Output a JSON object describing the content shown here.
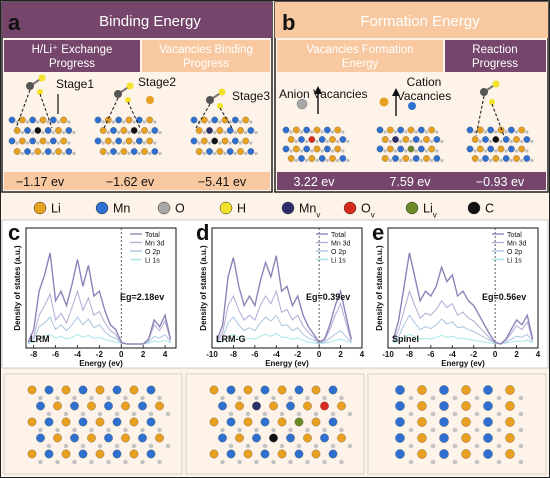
{
  "panels": {
    "a": {
      "letter": "a",
      "title": "Binding Energy",
      "sub_left": [
        "H/Li⁺ Exchange",
        "Progress"
      ],
      "sub_right": [
        "Vacancies Binding",
        "Progress"
      ],
      "stages": [
        "Stage1",
        "Stage2",
        "Stage3"
      ],
      "energies": [
        "−1.17 ev",
        "−1.62 ev",
        "−5.41 ev"
      ]
    },
    "b": {
      "letter": "b",
      "title": "Formation Energy",
      "sub_left": [
        "Vacancies Formation",
        "Energy"
      ],
      "sub_right": [
        "Reaction",
        "Progress"
      ],
      "anion_label": "Anion Vacancies",
      "cation_label": [
        "Cation",
        "Vacancies"
      ],
      "energies": [
        "3.22 ev",
        "7.59 ev",
        "−0.93 ev"
      ]
    },
    "c": {
      "letter": "c"
    },
    "d": {
      "letter": "d"
    },
    "e": {
      "letter": "e"
    }
  },
  "legend": [
    {
      "label": "Li",
      "sub": "",
      "color": "#e8a020"
    },
    {
      "label": "Mn",
      "sub": "",
      "color": "#2f6fd0"
    },
    {
      "label": "O",
      "sub": "",
      "color": "#a8a8a8"
    },
    {
      "label": "H",
      "sub": "",
      "color": "#f2e22a"
    },
    {
      "label": "Mn",
      "sub": "v",
      "color": "#2b2f6a"
    },
    {
      "label": "O",
      "sub": "v",
      "color": "#d62a1e"
    },
    {
      "label": "Li",
      "sub": "v",
      "color": "#6a8a2a"
    },
    {
      "label": "C",
      "sub": "",
      "color": "#111111"
    }
  ],
  "colors": {
    "purple": "#75456b",
    "peach": "#f8c9a0",
    "peach_light": "#fdebd8",
    "panel_bg": "#fdf3e8",
    "dos_total": "#8f82b8",
    "dos_mn": "#b8b0d6",
    "dos_o": "#a9c4e0",
    "dos_li": "#a8e6e6"
  },
  "chart_data": [
    {
      "type": "line",
      "panel": "c",
      "xlabel": "Energy (ev)",
      "ylabel": "Density of states (a.u.)",
      "xlim": [
        -8.7,
        5
      ],
      "xticks": [
        -8,
        -6,
        -4,
        -2,
        0,
        2,
        4
      ],
      "material": "LRM",
      "annotation": "Eg=2.18ev",
      "series": [
        {
          "name": "Total",
          "x": [
            -8.5,
            -8,
            -7.5,
            -7,
            -6.5,
            -6,
            -5.5,
            -5,
            -4.5,
            -4,
            -3.5,
            -3,
            -2.5,
            -2,
            -1.5,
            -1,
            -0.5,
            0,
            0.5,
            1,
            1.5,
            2,
            2.5,
            3,
            3.5,
            4,
            4.5
          ],
          "values": [
            0.02,
            0.15,
            0.55,
            0.72,
            0.95,
            0.45,
            0.55,
            0.4,
            0.62,
            0.88,
            0.6,
            0.82,
            0.5,
            0.55,
            0.35,
            0.2,
            0.15,
            0.02,
            0,
            0,
            0,
            0,
            0.05,
            0.25,
            0.18,
            0.3,
            0.05
          ]
        },
        {
          "name": "Mn 3d",
          "x": [
            -8.5,
            -8,
            -7.5,
            -7,
            -6.5,
            -6,
            -5.5,
            -5,
            -4.5,
            -4,
            -3.5,
            -3,
            -2.5,
            -2,
            -1.5,
            -1,
            -0.5,
            0,
            0.5,
            1,
            1.5,
            2,
            2.5,
            3,
            3.5,
            4,
            4.5
          ],
          "values": [
            0.01,
            0.08,
            0.3,
            0.4,
            0.52,
            0.25,
            0.32,
            0.22,
            0.38,
            0.55,
            0.35,
            0.48,
            0.3,
            0.34,
            0.22,
            0.14,
            0.1,
            0.01,
            0,
            0,
            0,
            0,
            0.04,
            0.2,
            0.14,
            0.24,
            0.04
          ]
        },
        {
          "name": "O 2p",
          "x": [
            -8.5,
            -8,
            -7.5,
            -7,
            -6.5,
            -6,
            -5.5,
            -5,
            -4.5,
            -4,
            -3.5,
            -3,
            -2.5,
            -2,
            -1.5,
            -1,
            -0.5,
            0,
            0.5,
            1,
            1.5,
            2,
            2.5,
            3,
            3.5,
            4,
            4.5
          ],
          "values": [
            0.01,
            0.05,
            0.18,
            0.22,
            0.28,
            0.15,
            0.2,
            0.14,
            0.2,
            0.28,
            0.2,
            0.26,
            0.17,
            0.2,
            0.13,
            0.08,
            0.06,
            0.01,
            0,
            0,
            0,
            0,
            0.02,
            0.08,
            0.06,
            0.1,
            0.02
          ]
        },
        {
          "name": "Li 1s",
          "x": [
            -8.5,
            -8,
            -7.5,
            -7,
            -6.5,
            -6,
            -5.5,
            -5,
            -4.5,
            -4,
            -3.5,
            -3,
            -2.5,
            -2,
            -1.5,
            -1,
            -0.5,
            0,
            0.5,
            1,
            1.5,
            2,
            2.5,
            3,
            3.5,
            4,
            4.5
          ],
          "values": [
            0.005,
            0.02,
            0.06,
            0.08,
            0.1,
            0.06,
            0.08,
            0.05,
            0.07,
            0.1,
            0.07,
            0.09,
            0.06,
            0.07,
            0.05,
            0.03,
            0.02,
            0.005,
            0,
            0,
            0,
            0,
            0.01,
            0.03,
            0.02,
            0.04,
            0.01
          ]
        }
      ]
    },
    {
      "type": "line",
      "panel": "d",
      "xlabel": "Energy (ev)",
      "ylabel": "Density of states (a.u.)",
      "xlim": [
        -10,
        4
      ],
      "xticks": [
        -10,
        -8,
        -6,
        -4,
        -2,
        0,
        2,
        4
      ],
      "material": "LRM-G",
      "annotation": "Eg=0.39ev",
      "series": [
        {
          "name": "Total",
          "x": [
            -9.5,
            -9,
            -8.5,
            -8,
            -7.5,
            -7,
            -6.5,
            -6,
            -5.5,
            -5,
            -4.5,
            -4,
            -3.5,
            -3,
            -2.5,
            -2,
            -1.5,
            -1,
            -0.5,
            0,
            0.5,
            1,
            1.5,
            2,
            2.5,
            3
          ],
          "values": [
            0.05,
            0.2,
            0.7,
            0.9,
            0.6,
            0.4,
            0.5,
            0.4,
            0.65,
            0.85,
            0.7,
            0.92,
            0.55,
            0.6,
            0.4,
            0.5,
            0.3,
            0.18,
            0.1,
            0.02,
            0.05,
            0.2,
            0.4,
            0.55,
            0.3,
            0.05
          ]
        },
        {
          "name": "Mn 3d",
          "x": [
            -9.5,
            -9,
            -8.5,
            -8,
            -7.5,
            -7,
            -6.5,
            -6,
            -5.5,
            -5,
            -4.5,
            -4,
            -3.5,
            -3,
            -2.5,
            -2,
            -1.5,
            -1,
            -0.5,
            0,
            0.5,
            1,
            1.5,
            2,
            2.5,
            3
          ],
          "values": [
            0.03,
            0.12,
            0.4,
            0.5,
            0.35,
            0.25,
            0.3,
            0.25,
            0.4,
            0.5,
            0.42,
            0.55,
            0.33,
            0.36,
            0.25,
            0.3,
            0.19,
            0.12,
            0.07,
            0.01,
            0.04,
            0.15,
            0.3,
            0.42,
            0.22,
            0.03
          ]
        },
        {
          "name": "O 2p",
          "x": [
            -9.5,
            -9,
            -8.5,
            -8,
            -7.5,
            -7,
            -6.5,
            -6,
            -5.5,
            -5,
            -4.5,
            -4,
            -3.5,
            -3,
            -2.5,
            -2,
            -1.5,
            -1,
            -0.5,
            0,
            0.5,
            1,
            1.5,
            2,
            2.5,
            3
          ],
          "values": [
            0.02,
            0.07,
            0.22,
            0.28,
            0.2,
            0.14,
            0.17,
            0.14,
            0.22,
            0.28,
            0.24,
            0.3,
            0.19,
            0.2,
            0.14,
            0.17,
            0.1,
            0.06,
            0.04,
            0.01,
            0.02,
            0.06,
            0.1,
            0.14,
            0.08,
            0.02
          ]
        },
        {
          "name": "Li 1s",
          "x": [
            -9.5,
            -9,
            -8.5,
            -8,
            -7.5,
            -7,
            -6.5,
            -6,
            -5.5,
            -5,
            -4.5,
            -4,
            -3.5,
            -3,
            -2.5,
            -2,
            -1.5,
            -1,
            -0.5,
            0,
            0.5,
            1,
            1.5,
            2,
            2.5,
            3
          ],
          "values": [
            0.01,
            0.03,
            0.08,
            0.1,
            0.07,
            0.05,
            0.06,
            0.05,
            0.08,
            0.1,
            0.08,
            0.11,
            0.07,
            0.07,
            0.05,
            0.06,
            0.04,
            0.02,
            0.01,
            0.005,
            0.01,
            0.02,
            0.04,
            0.05,
            0.03,
            0.01
          ]
        }
      ]
    },
    {
      "type": "line",
      "panel": "e",
      "xlabel": "Energy (ev)",
      "ylabel": "Density of states (a.u.)",
      "xlim": [
        -10,
        4
      ],
      "xticks": [
        -10,
        -8,
        -6,
        -4,
        -2,
        0,
        2,
        4
      ],
      "material": "Spinel",
      "annotation": "Eg=0.56ev",
      "series": [
        {
          "name": "Total",
          "x": [
            -9.5,
            -9,
            -8.5,
            -8,
            -7.5,
            -7,
            -6.5,
            -6,
            -5.5,
            -5,
            -4.5,
            -4,
            -3.5,
            -3,
            -2.5,
            -2,
            -1.5,
            -1,
            -0.5,
            0,
            0.5,
            1,
            1.5,
            2,
            2.5,
            3,
            3.5
          ],
          "values": [
            0.05,
            0.25,
            0.6,
            0.95,
            0.7,
            0.45,
            0.55,
            0.5,
            0.6,
            0.8,
            0.65,
            0.72,
            0.5,
            0.55,
            0.45,
            0.4,
            0.3,
            0.2,
            0.1,
            0.02,
            0,
            0.05,
            0.15,
            0.25,
            0.2,
            0.3,
            0.05
          ]
        },
        {
          "name": "Mn 3d",
          "x": [
            -9.5,
            -9,
            -8.5,
            -8,
            -7.5,
            -7,
            -6.5,
            -6,
            -5.5,
            -5,
            -4.5,
            -4,
            -3.5,
            -3,
            -2.5,
            -2,
            -1.5,
            -1,
            -0.5,
            0,
            0.5,
            1,
            1.5,
            2,
            2.5,
            3,
            3.5
          ],
          "values": [
            0.03,
            0.15,
            0.35,
            0.55,
            0.4,
            0.27,
            0.32,
            0.3,
            0.36,
            0.45,
            0.38,
            0.42,
            0.3,
            0.33,
            0.27,
            0.24,
            0.18,
            0.12,
            0.06,
            0.01,
            0,
            0.04,
            0.11,
            0.19,
            0.15,
            0.23,
            0.04
          ]
        },
        {
          "name": "O 2p",
          "x": [
            -9.5,
            -9,
            -8.5,
            -8,
            -7.5,
            -7,
            -6.5,
            -6,
            -5.5,
            -5,
            -4.5,
            -4,
            -3.5,
            -3,
            -2.5,
            -2,
            -1.5,
            -1,
            -0.5,
            0,
            0.5,
            1,
            1.5,
            2,
            2.5,
            3,
            3.5
          ],
          "values": [
            0.02,
            0.08,
            0.2,
            0.3,
            0.22,
            0.15,
            0.18,
            0.16,
            0.2,
            0.26,
            0.21,
            0.23,
            0.17,
            0.18,
            0.15,
            0.13,
            0.1,
            0.07,
            0.04,
            0.01,
            0,
            0.02,
            0.05,
            0.08,
            0.07,
            0.1,
            0.02
          ]
        },
        {
          "name": "Li 1s",
          "x": [
            -9.5,
            -9,
            -8.5,
            -8,
            -7.5,
            -7,
            -6.5,
            -6,
            -5.5,
            -5,
            -4.5,
            -4,
            -3.5,
            -3,
            -2.5,
            -2,
            -1.5,
            -1,
            -0.5,
            0,
            0.5,
            1,
            1.5,
            2,
            2.5,
            3,
            3.5
          ],
          "values": [
            0.01,
            0.03,
            0.07,
            0.1,
            0.08,
            0.05,
            0.06,
            0.05,
            0.07,
            0.09,
            0.07,
            0.08,
            0.06,
            0.06,
            0.05,
            0.04,
            0.03,
            0.02,
            0.01,
            0.005,
            0,
            0.01,
            0.02,
            0.03,
            0.03,
            0.04,
            0.01
          ]
        }
      ]
    }
  ]
}
